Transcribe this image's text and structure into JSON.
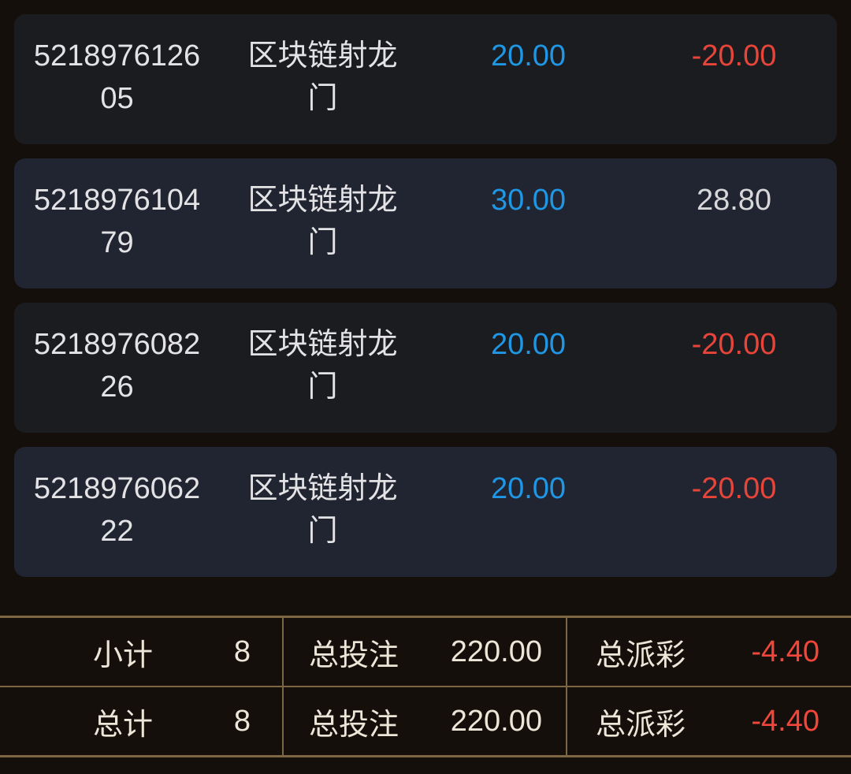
{
  "colors": {
    "page_background": "#150f0b",
    "card_dark": "#1b1c20",
    "card_blue": "#212531",
    "text_primary": "#e3e2e5",
    "bet_blue": "#1f97e4",
    "payout_negative_red": "#e8453a",
    "payout_positive_gray": "#d8d8db",
    "summary_text_cream": "#ece6d9",
    "summary_negative_red": "#f2463a",
    "table_border_gold": "#7d6743"
  },
  "records": [
    {
      "id": "521897612605",
      "game": "区块链射龙门",
      "bet": "20.00",
      "payout": "-20.00"
    },
    {
      "id": "521897610479",
      "game": "区块链射龙门",
      "bet": "30.00",
      "payout": "28.80"
    },
    {
      "id": "521897608226",
      "game": "区块链射龙门",
      "bet": "20.00",
      "payout": "-20.00"
    },
    {
      "id": "521897606222",
      "game": "区块链射龙门",
      "bet": "20.00",
      "payout": "-20.00"
    }
  ],
  "summary": {
    "subtotal": {
      "label": "小计",
      "count": "8",
      "bet_label": "总投注",
      "bet_value": "220.00",
      "payout_label": "总派彩",
      "payout_value": "-4.40"
    },
    "total": {
      "label": "总计",
      "count": "8",
      "bet_label": "总投注",
      "bet_value": "220.00",
      "payout_label": "总派彩",
      "payout_value": "-4.40"
    }
  }
}
